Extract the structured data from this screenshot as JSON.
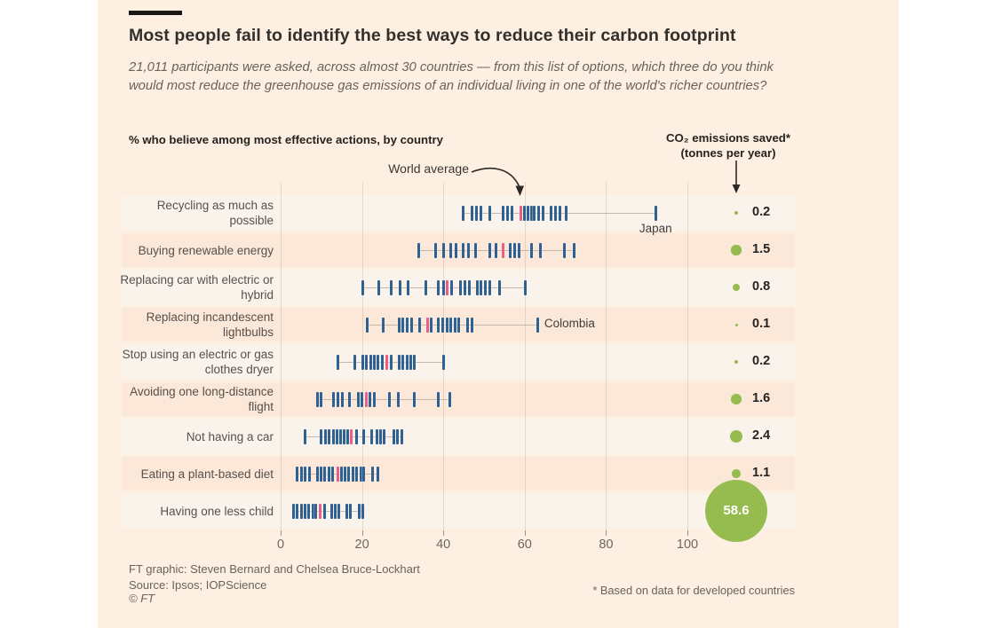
{
  "header": {
    "title": "Most people fail to identify the best ways to reduce their carbon footprint",
    "subtitle": "21,011 participants were asked, across almost 30 countries  — from this list of options, which three do you think would most reduce the greenhouse gas emissions of an individual living in one of the world's richer countries?"
  },
  "chart": {
    "left_heading": "% who believe among most effective actions, by country",
    "right_heading_line1": "CO₂ emissions saved*",
    "right_heading_line2": "(tonnes per year)",
    "world_average_label": "World average"
  },
  "colors": {
    "background": "#FDEFE2",
    "band_light": "#FAF3EB",
    "band_dark": "#FBE8D9",
    "country_tick_blue": "#2E6294",
    "world_average_pink": "#EA5F86",
    "co2_green": "#96BB4F",
    "title_text": "#33302C",
    "subtitle_text": "#6A635D"
  },
  "chart_data": {
    "type": "strip",
    "title": "% who believe among most effective actions, by country",
    "xlabel": "% who believe among most effective actions",
    "x_range": [
      0,
      100
    ],
    "x_ticks": [
      0,
      20,
      40,
      60,
      80,
      100
    ],
    "grid": true,
    "rows": [
      {
        "label": "Recycling as much as possible",
        "values": [
          44.9,
          47.1,
          48.2,
          49.3,
          51.5,
          54.7,
          55.8,
          56.9,
          60.0,
          60.9,
          61.7,
          62.4,
          63.5,
          64.6,
          66.4,
          67.5,
          68.6,
          70.1,
          92.2
        ],
        "world_average": 59.0,
        "co2_tonnes": 0.2,
        "co2_label": "0.2",
        "annotation": {
          "text": "Japan",
          "value": 92.2,
          "placement": "below"
        }
      },
      {
        "label": "Buying renewable energy",
        "values": [
          34.0,
          38.1,
          40.1,
          41.8,
          43.2,
          44.8,
          46.2,
          47.9,
          51.4,
          52.9,
          56.5,
          57.6,
          58.7,
          61.6,
          63.8,
          69.7,
          72.2
        ],
        "world_average": 54.8,
        "co2_tonnes": 1.5,
        "co2_label": "1.5",
        "annotation": null
      },
      {
        "label": "Replacing car with electric or hybrid",
        "values": [
          20.2,
          24.2,
          27.1,
          29.3,
          31.3,
          35.8,
          38.7,
          40.0,
          42.0,
          44.2,
          45.3,
          46.4,
          48.3,
          49.3,
          50.4,
          51.5,
          53.9,
          60.2
        ],
        "world_average": 41.0,
        "co2_tonnes": 0.8,
        "co2_label": "0.8",
        "annotation": null
      },
      {
        "label": "Replacing incandescent lightbulbs",
        "values": [
          21.2,
          25.3,
          29.1,
          30.1,
          31.2,
          32.3,
          34.2,
          37.0,
          38.7,
          39.8,
          40.9,
          41.9,
          42.9,
          43.8,
          46.0,
          47.1,
          63.3
        ],
        "world_average": 36.2,
        "co2_tonnes": 0.1,
        "co2_label": "0.1",
        "annotation": {
          "text": "Colombia",
          "value": 63.3,
          "placement": "right"
        }
      },
      {
        "label": "Stop using an electric or gas clothes dryer",
        "values": [
          14.0,
          18.2,
          20.2,
          21.1,
          22.1,
          23.1,
          24.0,
          24.9,
          27.1,
          29.1,
          30.1,
          31.1,
          32.0,
          32.9,
          40.0
        ],
        "world_average": 26.0,
        "co2_tonnes": 0.2,
        "co2_label": "0.2",
        "annotation": null
      },
      {
        "label": "Avoiding one long-distance flight",
        "values": [
          9.0,
          10.0,
          13.1,
          14.1,
          15.1,
          17.0,
          19.1,
          19.9,
          22.0,
          23.1,
          26.7,
          28.9,
          32.8,
          38.7,
          41.6
        ],
        "world_average": 21.0,
        "co2_tonnes": 1.6,
        "co2_label": "1.6",
        "annotation": null
      },
      {
        "label": "Not having a car",
        "values": [
          6.0,
          10.0,
          11.1,
          12.0,
          12.9,
          13.8,
          14.7,
          15.6,
          16.5,
          18.7,
          20.5,
          22.3,
          23.6,
          24.5,
          25.5,
          27.8,
          28.8,
          29.8
        ],
        "world_average": 17.4,
        "co2_tonnes": 2.4,
        "co2_label": "2.4",
        "annotation": null
      },
      {
        "label": "Eating a plant-based diet",
        "values": [
          4.1,
          5.1,
          6.0,
          7.0,
          9.0,
          10.0,
          10.9,
          11.9,
          12.8,
          14.9,
          15.9,
          16.8,
          17.8,
          18.7,
          19.7,
          20.5,
          22.7,
          23.8
        ],
        "world_average": 14.0,
        "co2_tonnes": 1.1,
        "co2_label": "1.1",
        "annotation": null
      },
      {
        "label": "Having one less child",
        "values": [
          3.2,
          4.1,
          5.1,
          6.0,
          6.9,
          7.9,
          8.7,
          10.7,
          12.5,
          13.5,
          14.4,
          16.2,
          17.1,
          19.3,
          20.1
        ],
        "world_average": 9.8,
        "co2_tonnes": 58.6,
        "co2_label": "58.6",
        "annotation": null
      }
    ],
    "legend_position": "none"
  },
  "footer": {
    "credit": "FT graphic: Steven Bernard and Chelsea Bruce-Lockhart",
    "source": "Source: Ipsos; IOPScience",
    "copyright": "© FT",
    "footnote": "* Based on data for developed countries"
  }
}
